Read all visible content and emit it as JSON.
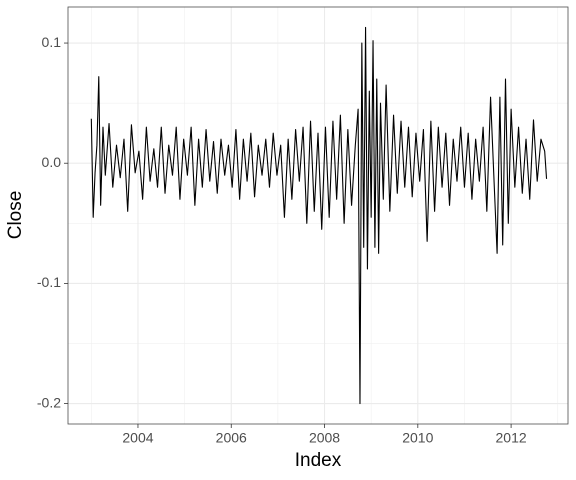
{
  "chart_data": {
    "type": "line",
    "x_label": "Index",
    "y_label": "Close",
    "color": "#000000",
    "grid": true,
    "xlim": [
      2002.5,
      2013.22
    ],
    "ylim": [
      -0.217,
      0.13
    ],
    "xticks": [
      2004,
      2006,
      2008,
      2010,
      2012
    ],
    "yticks": [
      -0.2,
      -0.1,
      {
        "value": 0,
        "label": "0.0"
      },
      0.1
    ],
    "x": [
      2003.0,
      2003.04,
      2003.08,
      2003.12,
      2003.16,
      2003.2,
      2003.25,
      2003.3,
      2003.38,
      2003.46,
      2003.54,
      2003.62,
      2003.7,
      2003.78,
      2003.86,
      2003.94,
      2004.02,
      2004.1,
      2004.18,
      2004.26,
      2004.34,
      2004.42,
      2004.5,
      2004.58,
      2004.66,
      2004.74,
      2004.82,
      2004.9,
      2004.98,
      2005.06,
      2005.14,
      2005.22,
      2005.3,
      2005.38,
      2005.46,
      2005.54,
      2005.62,
      2005.7,
      2005.78,
      2005.86,
      2005.94,
      2006.02,
      2006.1,
      2006.18,
      2006.26,
      2006.34,
      2006.42,
      2006.5,
      2006.58,
      2006.66,
      2006.74,
      2006.82,
      2006.9,
      2006.98,
      2007.06,
      2007.14,
      2007.22,
      2007.3,
      2007.38,
      2007.46,
      2007.54,
      2007.62,
      2007.7,
      2007.78,
      2007.86,
      2007.94,
      2008.02,
      2008.1,
      2008.18,
      2008.26,
      2008.34,
      2008.42,
      2008.5,
      2008.58,
      2008.66,
      2008.72,
      2008.76,
      2008.8,
      2008.84,
      2008.88,
      2008.92,
      2008.96,
      2009.0,
      2009.04,
      2009.08,
      2009.12,
      2009.16,
      2009.2,
      2009.26,
      2009.32,
      2009.4,
      2009.48,
      2009.56,
      2009.64,
      2009.72,
      2009.8,
      2009.88,
      2009.96,
      2010.04,
      2010.12,
      2010.2,
      2010.28,
      2010.36,
      2010.44,
      2010.52,
      2010.6,
      2010.68,
      2010.76,
      2010.84,
      2010.92,
      2011.0,
      2011.08,
      2011.16,
      2011.24,
      2011.32,
      2011.4,
      2011.48,
      2011.56,
      2011.64,
      2011.7,
      2011.76,
      2011.82,
      2011.88,
      2011.94,
      2012.0,
      2012.08,
      2012.16,
      2012.24,
      2012.32,
      2012.4,
      2012.48,
      2012.56,
      2012.64,
      2012.72,
      2012.76
    ],
    "values": [
      0.037,
      -0.045,
      -0.008,
      0.015,
      0.072,
      -0.035,
      0.03,
      -0.01,
      0.033,
      -0.02,
      0.015,
      -0.012,
      0.02,
      -0.04,
      0.032,
      -0.008,
      0.01,
      -0.03,
      0.03,
      -0.015,
      0.012,
      -0.02,
      0.03,
      -0.025,
      0.015,
      -0.01,
      0.03,
      -0.03,
      0.02,
      -0.01,
      0.03,
      -0.035,
      0.02,
      -0.02,
      0.028,
      -0.015,
      0.018,
      -0.025,
      0.02,
      -0.01,
      0.015,
      -0.02,
      0.028,
      -0.03,
      0.02,
      -0.015,
      0.025,
      -0.028,
      0.015,
      -0.01,
      0.02,
      -0.02,
      0.025,
      -0.01,
      0.015,
      -0.045,
      0.02,
      -0.03,
      0.028,
      -0.015,
      0.03,
      -0.05,
      0.035,
      -0.04,
      0.025,
      -0.055,
      0.03,
      -0.045,
      0.035,
      -0.03,
      0.04,
      -0.05,
      0.028,
      -0.035,
      0.015,
      0.045,
      -0.2,
      0.1,
      -0.07,
      0.113,
      -0.088,
      0.06,
      -0.045,
      0.102,
      -0.07,
      0.07,
      -0.075,
      0.05,
      -0.03,
      0.065,
      -0.04,
      0.04,
      -0.025,
      0.035,
      -0.02,
      0.03,
      -0.028,
      0.025,
      -0.015,
      0.028,
      -0.065,
      0.035,
      -0.04,
      0.03,
      -0.02,
      0.025,
      -0.035,
      0.02,
      -0.015,
      0.03,
      -0.02,
      0.025,
      -0.03,
      0.02,
      -0.015,
      0.03,
      -0.04,
      0.055,
      -0.02,
      -0.075,
      0.055,
      -0.068,
      0.07,
      -0.05,
      0.045,
      -0.02,
      0.03,
      -0.025,
      0.02,
      -0.03,
      0.036,
      -0.015,
      0.02,
      0.01,
      -0.013
    ]
  }
}
